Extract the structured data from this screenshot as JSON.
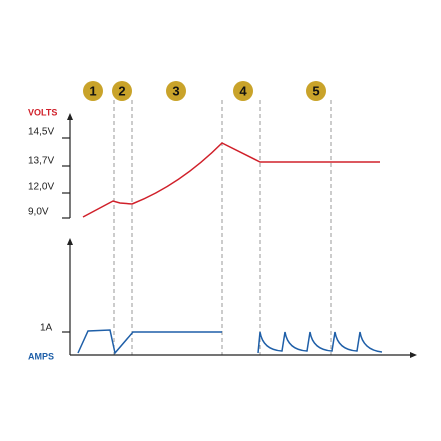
{
  "steps": [
    "1",
    "2",
    "3",
    "4",
    "5"
  ],
  "volts_axis": {
    "title": "VOLTS",
    "ticks": [
      "14,5V",
      "13,7V",
      "12,0V",
      "9,0V"
    ]
  },
  "amps_axis": {
    "title": "AMPS",
    "ticks": [
      "1A"
    ]
  }
}
